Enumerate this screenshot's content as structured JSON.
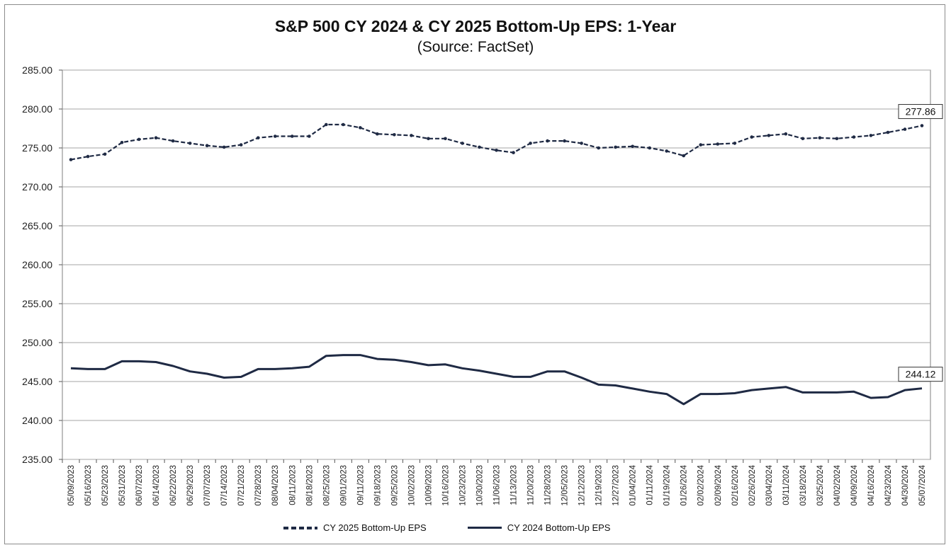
{
  "chart_data": {
    "type": "line",
    "title": "S&P 500 CY 2024 & CY 2025 Bottom-Up  EPS: 1-Year",
    "subtitle": "(Source: FactSet)",
    "xlabel": "",
    "ylabel": "",
    "ylim": [
      235,
      285
    ],
    "yticks": [
      "235.00",
      "240.00",
      "245.00",
      "250.00",
      "255.00",
      "260.00",
      "265.00",
      "270.00",
      "275.00",
      "280.00",
      "285.00"
    ],
    "x_tick_labels": [
      "05/09/2023",
      "05/16/2023",
      "05/23/2023",
      "05/31/2023",
      "06/07/2023",
      "06/14/2023",
      "06/22/2023",
      "06/29/2023",
      "07/07/2023",
      "07/14/2023",
      "07/21/2023",
      "07/28/2023",
      "08/04/2023",
      "08/11/2023",
      "08/18/2023",
      "08/25/2023",
      "09/01/2023",
      "09/11/2023",
      "09/18/2023",
      "09/25/2023",
      "10/02/2023",
      "10/09/2023",
      "10/16/2023",
      "10/23/2023",
      "10/30/2023",
      "11/06/2023",
      "11/13/2023",
      "11/20/2023",
      "11/28/2023",
      "12/05/2023",
      "12/12/2023",
      "12/19/2023",
      "12/27/2023",
      "01/04/2024",
      "01/11/2024",
      "01/19/2024",
      "01/26/2024",
      "02/02/2024",
      "02/09/2024",
      "02/16/2024",
      "02/26/2024",
      "03/04/2024",
      "03/11/2024",
      "03/18/2024",
      "03/25/2024",
      "04/02/2024",
      "04/09/2024",
      "04/16/2024",
      "04/23/2024",
      "04/30/2024",
      "05/07/2024"
    ],
    "grid": "horizontal",
    "legend_position": "bottom",
    "colors": {
      "series": "#1f2a44",
      "grid": "#a6a6a6"
    },
    "series": [
      {
        "name": "CY 2025 Bottom-Up EPS",
        "style": "dashed-markers",
        "end_label": "277.86",
        "values": [
          273.5,
          273.9,
          274.2,
          275.7,
          276.1,
          276.3,
          275.9,
          275.6,
          275.3,
          275.1,
          275.4,
          276.3,
          276.5,
          276.5,
          276.5,
          278.0,
          278.0,
          277.6,
          276.8,
          276.7,
          276.6,
          276.2,
          276.2,
          275.6,
          275.1,
          274.7,
          274.4,
          275.6,
          275.9,
          275.9,
          275.6,
          275.0,
          275.1,
          275.2,
          275.0,
          274.6,
          274.0,
          275.4,
          275.5,
          275.6,
          276.4,
          276.6,
          276.8,
          276.2,
          276.3,
          276.2,
          276.4,
          276.6,
          277.0,
          277.4,
          277.86
        ]
      },
      {
        "name": "CY 2024 Bottom-Up EPS",
        "style": "solid",
        "end_label": "244.12",
        "values": [
          246.7,
          246.6,
          246.6,
          247.6,
          247.6,
          247.5,
          247.0,
          246.3,
          246.0,
          245.5,
          245.6,
          246.6,
          246.6,
          246.7,
          246.9,
          248.3,
          248.4,
          248.4,
          247.9,
          247.8,
          247.5,
          247.1,
          247.2,
          246.7,
          246.4,
          246.0,
          245.6,
          245.6,
          246.3,
          246.3,
          245.5,
          244.6,
          244.5,
          244.1,
          243.7,
          243.4,
          242.1,
          243.4,
          243.4,
          243.5,
          243.9,
          244.1,
          244.3,
          243.6,
          243.6,
          243.6,
          243.7,
          242.9,
          243.0,
          243.9,
          244.12
        ]
      }
    ]
  }
}
